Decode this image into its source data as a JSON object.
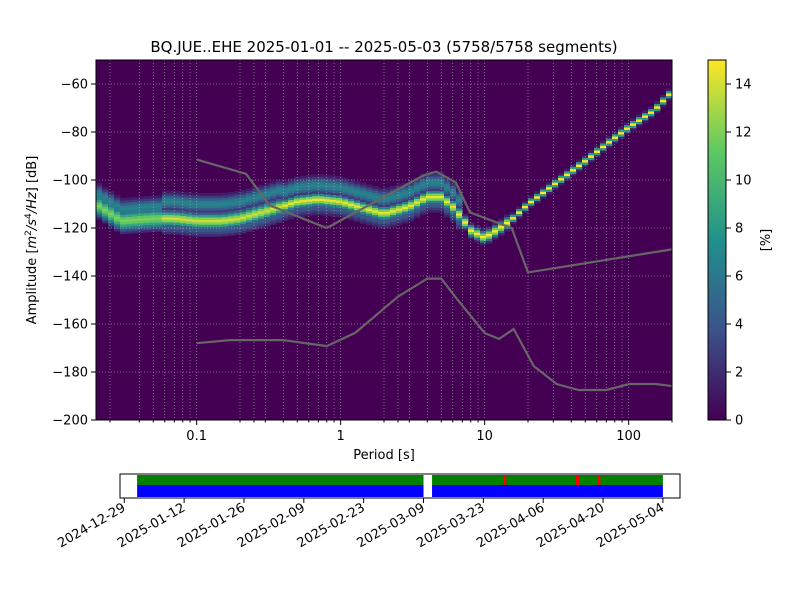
{
  "chart_data": [
    {
      "type": "heatmap",
      "title": "BQ.JUE..EHE   2025-01-01 -- 2025-05-03  (5758/5758 segments)",
      "xlabel": "Period [s]",
      "ylabel_parts": [
        "Amplitude [",
        "m",
        "2",
        "/s",
        "4",
        "/Hz",
        "] [dB]"
      ],
      "x_scale": "log",
      "xlim": [
        0.02,
        200
      ],
      "ylim": [
        -200,
        -50
      ],
      "x_ticks": [
        {
          "value": 0.1,
          "label": "0.1"
        },
        {
          "value": 1,
          "label": "1"
        },
        {
          "value": 10,
          "label": "10"
        },
        {
          "value": 100,
          "label": "100"
        }
      ],
      "y_ticks": [
        {
          "value": -60,
          "label": "−60"
        },
        {
          "value": -80,
          "label": "−80"
        },
        {
          "value": -100,
          "label": "−100"
        },
        {
          "value": -120,
          "label": "−120"
        },
        {
          "value": -140,
          "label": "−140"
        },
        {
          "value": -160,
          "label": "−160"
        },
        {
          "value": -180,
          "label": "−180"
        },
        {
          "value": -200,
          "label": "−200"
        }
      ],
      "grid": true,
      "colormap": [
        "#440154",
        "#3b528b",
        "#21918c",
        "#5ec962",
        "#fde725"
      ],
      "background_color": "#440154",
      "colorbar": {
        "label": "[%]",
        "range": [
          0,
          15
        ],
        "ticks": [
          {
            "value": 0,
            "label": "0"
          },
          {
            "value": 2,
            "label": "2"
          },
          {
            "value": 4,
            "label": "4"
          },
          {
            "value": 6,
            "label": "6"
          },
          {
            "value": 8,
            "label": "8"
          },
          {
            "value": 10,
            "label": "10"
          },
          {
            "value": 12,
            "label": "12"
          },
          {
            "value": 14,
            "label": "14"
          }
        ]
      },
      "ridge": [
        {
          "period": 0.02,
          "db": -110
        },
        {
          "period": 0.03,
          "db": -117
        },
        {
          "period": 0.05,
          "db": -116
        },
        {
          "period": 0.07,
          "db": -116
        },
        {
          "period": 0.1,
          "db": -117
        },
        {
          "period": 0.15,
          "db": -117
        },
        {
          "period": 0.2,
          "db": -116
        },
        {
          "period": 0.3,
          "db": -113
        },
        {
          "period": 0.5,
          "db": -109
        },
        {
          "period": 0.7,
          "db": -108
        },
        {
          "period": 1.0,
          "db": -109
        },
        {
          "period": 1.5,
          "db": -112
        },
        {
          "period": 2.0,
          "db": -114
        },
        {
          "period": 3.0,
          "db": -111
        },
        {
          "period": 4.0,
          "db": -107
        },
        {
          "period": 5.0,
          "db": -107
        },
        {
          "period": 6.0,
          "db": -111
        },
        {
          "period": 7.0,
          "db": -116
        },
        {
          "period": 8.0,
          "db": -121
        },
        {
          "period": 10.0,
          "db": -124
        },
        {
          "period": 12.0,
          "db": -121
        },
        {
          "period": 15.0,
          "db": -117
        },
        {
          "period": 20.0,
          "db": -110
        },
        {
          "period": 30.0,
          "db": -102
        },
        {
          "period": 50.0,
          "db": -92
        },
        {
          "period": 70.0,
          "db": -85
        },
        {
          "period": 100.0,
          "db": -78
        },
        {
          "period": 150.0,
          "db": -71
        },
        {
          "period": 200.0,
          "db": -63
        }
      ],
      "noise_models": [
        {
          "name": "high",
          "points": [
            [
              0.1,
              -91.5
            ],
            [
              0.22,
              -97.4
            ],
            [
              0.32,
              -110.5
            ],
            [
              0.8,
              -120
            ],
            [
              3.8,
              -98
            ],
            [
              4.6,
              -96.5
            ],
            [
              6.3,
              -101
            ],
            [
              7.9,
              -113.5
            ],
            [
              15.4,
              -120
            ],
            [
              20,
              -138.5
            ],
            [
              354.8,
              -126.5
            ]
          ]
        },
        {
          "name": "low",
          "points": [
            [
              0.1,
              -168
            ],
            [
              0.17,
              -166.7
            ],
            [
              0.4,
              -166.7
            ],
            [
              0.8,
              -169.2
            ],
            [
              1.26,
              -163.7
            ],
            [
              2.5,
              -148.6
            ],
            [
              4.0,
              -141.1
            ],
            [
              5.0,
              -141.1
            ],
            [
              6.3,
              -149
            ],
            [
              10,
              -163.8
            ],
            [
              12.6,
              -166.2
            ],
            [
              15.9,
              -162.1
            ],
            [
              21.9,
              -177.5
            ],
            [
              31.6,
              -185
            ],
            [
              45,
              -187.5
            ],
            [
              70,
              -187.5
            ],
            [
              101,
              -185
            ],
            [
              154,
              -185
            ],
            [
              328,
              -187.5
            ]
          ]
        }
      ],
      "vertical_grid_periods": [
        0.025,
        0.04,
        0.05,
        0.06,
        0.07,
        0.08,
        0.09,
        0.2,
        0.25,
        0.3,
        0.4,
        0.5,
        0.6,
        0.7,
        0.8,
        0.9,
        2,
        2.5,
        3,
        4,
        5,
        6,
        7,
        8,
        9,
        20,
        30,
        40,
        50,
        60,
        70,
        80,
        90,
        200
      ]
    },
    {
      "type": "timeline",
      "range": [
        "2024-12-28",
        "2025-05-08"
      ],
      "data_start": "2025-01-01",
      "data_end": "2025-05-04",
      "gaps": [
        {
          "start": "2025-03-09",
          "end": "2025-03-11"
        }
      ],
      "red_marks": [
        "2025-03-28",
        "2025-04-14",
        "2025-04-19"
      ],
      "colors": {
        "top": "#008000",
        "bottom": "#0000ff",
        "mark": "#ff0000"
      },
      "x_ticks": [
        "2024-12-29",
        "2025-01-12",
        "2025-01-26",
        "2025-02-09",
        "2025-02-23",
        "2025-03-09",
        "2025-03-23",
        "2025-04-06",
        "2025-04-20",
        "2025-05-04"
      ]
    }
  ]
}
